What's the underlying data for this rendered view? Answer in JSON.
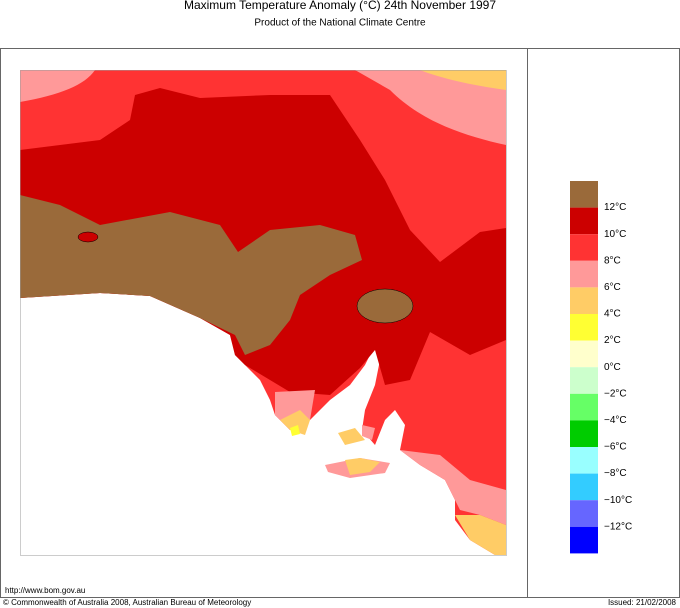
{
  "header": {
    "title": "Maximum Temperature Anomaly (°C)  24th November 1997",
    "subtitle": "Product of the National Climate Centre"
  },
  "legend": {
    "colors": [
      "#9a6a3a",
      "#cc0000",
      "#ff3333",
      "#ff9999",
      "#ffcc66",
      "#ffff33",
      "#ffffcc",
      "#ccffcc",
      "#66ff66",
      "#00cc00",
      "#99ffff",
      "#33ccff",
      "#6666ff",
      "#0000ff"
    ],
    "labels": [
      "12°C",
      "10°C",
      "8°C",
      "6°C",
      "4°C",
      "2°C",
      "0°C",
      "−2°C",
      "−4°C",
      "−6°C",
      "−8°C",
      "−10°C",
      "−12°C"
    ]
  },
  "footer": {
    "url": "http://www.bom.gov.au",
    "copyright": "© Commonwealth of Australia 2008, Australian Bureau of Meteorology",
    "issued": "Issued: 21/02/2008"
  }
}
